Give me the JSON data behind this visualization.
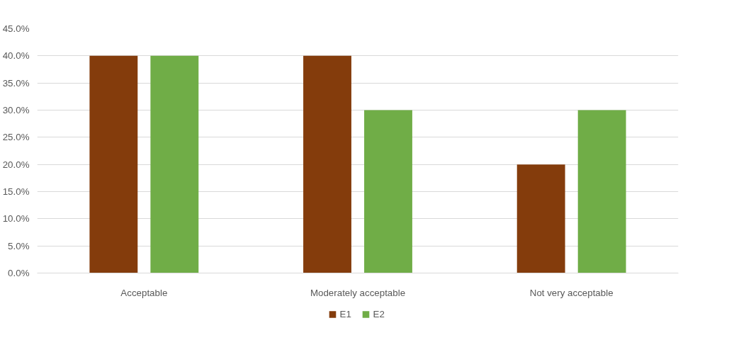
{
  "chart_data": {
    "type": "bar",
    "categories": [
      "Acceptable",
      "Moderately acceptable",
      "Not very acceptable"
    ],
    "series": [
      {
        "name": "E1",
        "color": "#843c0c",
        "values": [
          40,
          40,
          20
        ]
      },
      {
        "name": "E2",
        "color": "#70ad47",
        "values": [
          40,
          30,
          30
        ]
      }
    ],
    "ylim": [
      0,
      45
    ],
    "yticks": [
      {
        "value": 0,
        "label": "0.0%"
      },
      {
        "value": 5,
        "label": "5.0%"
      },
      {
        "value": 10,
        "label": "10.0%"
      },
      {
        "value": 15,
        "label": "15.0%"
      },
      {
        "value": 20,
        "label": "20.0%"
      },
      {
        "value": 25,
        "label": "25.0%"
      },
      {
        "value": 30,
        "label": "30.0%"
      },
      {
        "value": 35,
        "label": "35.0%"
      },
      {
        "value": 40,
        "label": "40.0%"
      },
      {
        "value": 45,
        "label": "45.0%"
      }
    ],
    "grid": "y",
    "legend": "bottom"
  }
}
